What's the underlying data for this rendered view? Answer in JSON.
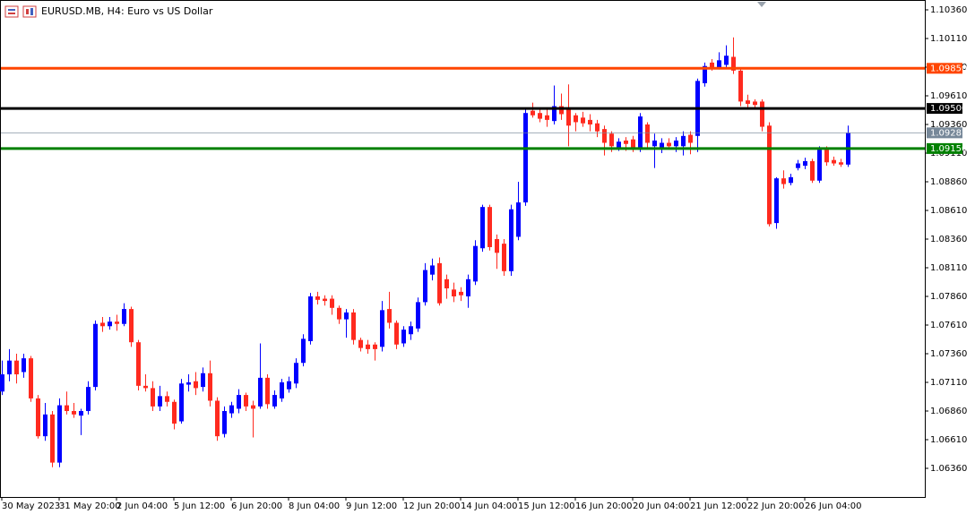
{
  "chart_data": {
    "type": "candlestick",
    "title": "EURUSD.MB, H4:  Euro vs US Dollar",
    "categories": [
      "30 May 2023",
      null,
      null,
      null,
      null,
      null,
      null,
      null,
      "31 May 20:00",
      null,
      null,
      null,
      null,
      null,
      null,
      null,
      "2 Jun 04:00",
      null,
      null,
      null,
      null,
      null,
      null,
      null,
      "5 Jun 12:00",
      null,
      null,
      null,
      null,
      null,
      null,
      null,
      "6 Jun 20:00",
      null,
      null,
      null,
      null,
      null,
      null,
      null,
      "8 Jun 04:00",
      null,
      null,
      null,
      null,
      null,
      null,
      null,
      "9 Jun 12:00",
      null,
      null,
      null,
      null,
      null,
      null,
      null,
      "12 Jun 20:00",
      null,
      null,
      null,
      null,
      null,
      null,
      null,
      "14 Jun 04:00",
      null,
      null,
      null,
      null,
      null,
      null,
      null,
      "15 Jun 12:00",
      null,
      null,
      null,
      null,
      null,
      null,
      null,
      "16 Jun 20:00",
      null,
      null,
      null,
      null,
      null,
      null,
      null,
      "20 Jun 04:00",
      null,
      null,
      null,
      null,
      null,
      null,
      null,
      "21 Jun 12:00",
      null,
      null,
      null,
      null,
      null,
      null,
      null,
      "22 Jun 20:00",
      null,
      null,
      null,
      null,
      null,
      null,
      null,
      "26 Jun 04:00",
      null,
      null,
      null,
      null,
      null,
      null
    ],
    "open": [
      1.0703,
      1.0718,
      1.073,
      1.072,
      1.0732,
      1.0697,
      1.0664,
      1.0683,
      1.0641,
      1.0691,
      1.0686,
      1.0682,
      1.0686,
      1.0707,
      1.0763,
      1.076,
      1.0764,
      1.0762,
      1.0775,
      1.0746,
      1.0708,
      1.0706,
      1.069,
      1.0699,
      1.0694,
      1.0677,
      1.0709,
      1.0712,
      1.0707,
      1.0719,
      1.0695,
      1.0666,
      1.0684,
      1.0688,
      1.07,
      1.0691,
      1.069,
      1.0715,
      1.069,
      1.0697,
      1.0705,
      1.071,
      1.0728,
      1.0747,
      1.0786,
      1.0784,
      1.0784,
      1.0776,
      1.0766,
      1.0772,
      1.0748,
      1.0744,
      1.0744,
      1.0742,
      1.0775,
      1.0763,
      1.0745,
      1.0753,
      1.0758,
      1.0781,
      1.0805,
      1.0815,
      1.0801,
      1.0792,
      1.079,
      1.0786,
      1.0799,
      1.0828,
      1.0864,
      1.0836,
      1.0832,
      1.0808,
      1.0838,
      1.0868,
      1.0948,
      1.0946,
      1.0944,
      1.0939,
      1.0952,
      1.095,
      1.0944,
      1.0942,
      1.094,
      1.0937,
      1.0932,
      1.0928,
      1.0916,
      1.0922,
      1.0923,
      1.0914,
      1.0936,
      1.0917,
      1.0916,
      1.092,
      1.0917,
      1.0917,
      1.0927,
      1.0926,
      1.0972,
      1.099,
      1.0986,
      1.0988,
      1.0995,
      1.0983,
      1.0957,
      1.0956,
      1.0956,
      1.0935,
      1.085,
      1.0889,
      1.0885,
      1.0898,
      1.09,
      1.0904,
      1.0887,
      1.0914,
      1.0905,
      1.0903,
      1.0901
    ],
    "high": [
      1.073,
      1.074,
      1.0736,
      1.0736,
      1.0734,
      1.07,
      1.0693,
      1.0686,
      1.0697,
      1.0703,
      1.0693,
      1.0688,
      1.0712,
      1.0765,
      1.0768,
      1.0768,
      1.077,
      1.078,
      1.0777,
      1.0748,
      1.0718,
      1.0712,
      1.0708,
      1.0703,
      1.0696,
      1.0714,
      1.0718,
      1.072,
      1.0724,
      1.073,
      1.0698,
      1.069,
      1.0694,
      1.0705,
      1.0702,
      1.0695,
      1.0745,
      1.0718,
      1.0704,
      1.0714,
      1.0716,
      1.0732,
      1.0753,
      1.0789,
      1.079,
      1.0787,
      1.0787,
      1.0778,
      1.0775,
      1.0775,
      1.075,
      1.0748,
      1.0746,
      1.0782,
      1.079,
      1.0765,
      1.076,
      1.0764,
      1.0785,
      1.0815,
      1.0819,
      1.082,
      1.0805,
      1.0798,
      1.0794,
      1.0805,
      1.0835,
      1.0866,
      1.0866,
      1.084,
      1.0836,
      1.0866,
      1.0886,
      1.095,
      1.0955,
      1.095,
      1.095,
      1.097,
      1.0963,
      1.0971,
      1.0946,
      1.0947,
      1.0945,
      1.094,
      1.0935,
      1.093,
      1.0924,
      1.0925,
      1.0926,
      1.0946,
      1.0938,
      1.0928,
      1.0924,
      1.0924,
      1.0925,
      1.093,
      1.093,
      1.0976,
      1.099,
      1.0993,
      1.0999,
      1.1005,
      1.1012,
      1.0986,
      1.0962,
      1.0958,
      1.0958,
      1.0938,
      1.089,
      1.0896,
      1.0893,
      1.0905,
      1.0907,
      1.0906,
      1.0917,
      1.0917,
      1.0908,
      1.0906,
      1.0935
    ],
    "low": [
      1.07,
      1.0712,
      1.071,
      1.0715,
      1.0694,
      1.0662,
      1.066,
      1.0637,
      1.0637,
      1.0683,
      1.068,
      1.0665,
      1.0683,
      1.0704,
      1.0755,
      1.0757,
      1.0756,
      1.076,
      1.0742,
      1.0704,
      1.0703,
      1.0686,
      1.0686,
      1.069,
      1.067,
      1.0675,
      1.0703,
      1.07,
      1.0703,
      1.069,
      1.066,
      1.0663,
      1.068,
      1.0684,
      1.0686,
      1.0663,
      1.0688,
      1.0688,
      1.0688,
      1.0694,
      1.0702,
      1.0706,
      1.0725,
      1.0744,
      1.0779,
      1.0778,
      1.077,
      1.0762,
      1.075,
      1.0744,
      1.0738,
      1.0736,
      1.073,
      1.0738,
      1.0758,
      1.074,
      1.0742,
      1.0748,
      1.0755,
      1.0778,
      1.08,
      1.0778,
      1.0784,
      1.0781,
      1.0782,
      1.0776,
      1.0796,
      1.0825,
      1.0826,
      1.081,
      1.0804,
      1.0804,
      1.0835,
      1.0865,
      1.0942,
      1.0938,
      1.0934,
      1.0936,
      1.094,
      1.0917,
      1.093,
      1.0934,
      1.093,
      1.0925,
      1.0909,
      1.0912,
      1.0913,
      1.0913,
      1.0912,
      1.0912,
      1.0915,
      1.0898,
      1.0911,
      1.0914,
      1.0912,
      1.0909,
      1.091,
      1.0912,
      1.0969,
      1.0983,
      1.0984,
      1.0985,
      1.098,
      1.0952,
      1.095,
      1.095,
      1.093,
      1.0847,
      1.0845,
      1.088,
      1.0883,
      1.0896,
      1.0897,
      1.0885,
      1.0885,
      1.09,
      1.09,
      1.0899,
      1.0899
    ],
    "close": [
      1.0718,
      1.073,
      1.0718,
      1.0732,
      1.0697,
      1.0664,
      1.0683,
      1.0641,
      1.0691,
      1.0686,
      1.0683,
      1.0686,
      1.0707,
      1.0762,
      1.076,
      1.0764,
      1.0762,
      1.0775,
      1.0746,
      1.0708,
      1.0706,
      1.069,
      1.0699,
      1.0694,
      1.0675,
      1.071,
      1.0711,
      1.0706,
      1.0719,
      1.0695,
      1.0664,
      1.0686,
      1.0691,
      1.07,
      1.069,
      1.0688,
      1.0715,
      1.0692,
      1.07,
      1.0711,
      1.0712,
      1.0728,
      1.0749,
      1.0786,
      1.0783,
      1.0782,
      1.0776,
      1.0766,
      1.0772,
      1.0748,
      1.0741,
      1.074,
      1.074,
      1.0774,
      1.0763,
      1.0744,
      1.0757,
      1.076,
      1.0781,
      1.0809,
      1.0813,
      1.078,
      1.0793,
      1.0786,
      1.0787,
      1.0801,
      1.083,
      1.0864,
      1.0829,
      1.0824,
      1.0808,
      1.0862,
      1.0868,
      1.0946,
      1.0944,
      1.0941,
      1.094,
      1.0952,
      1.0945,
      1.0935,
      1.0938,
      1.0937,
      1.0936,
      1.093,
      1.092,
      1.0917,
      1.0921,
      1.0919,
      1.0914,
      1.0943,
      1.092,
      1.0922,
      1.092,
      1.0917,
      1.0922,
      1.0926,
      1.092,
      1.0974,
      1.0987,
      1.0986,
      1.0992,
      1.0996,
      1.0983,
      1.0956,
      1.0954,
      1.0953,
      1.0934,
      1.0849,
      1.0889,
      1.0884,
      1.089,
      1.0902,
      1.0904,
      1.0887,
      1.0914,
      1.0903,
      1.0902,
      1.0901,
      1.09287
    ],
    "up_color": "#0000ff",
    "down_color": "#ff2a1f",
    "ylim": [
      1.0611,
      1.10446
    ],
    "yticks": [
      {
        "value": 1.1036,
        "label": "1.10360"
      },
      {
        "value": 1.1011,
        "label": "1.10110"
      },
      {
        "value": 1.0986,
        "label": "1.09860"
      },
      {
        "value": 1.0961,
        "label": "1.09610"
      },
      {
        "value": 1.0936,
        "label": "1.09360"
      },
      {
        "value": 1.0911,
        "label": "1.09110"
      },
      {
        "value": 1.0886,
        "label": "1.08860"
      },
      {
        "value": 1.0861,
        "label": "1.08610"
      },
      {
        "value": 1.0836,
        "label": "1.08360"
      },
      {
        "value": 1.0811,
        "label": "1.08110"
      },
      {
        "value": 1.0786,
        "label": "1.07860"
      },
      {
        "value": 1.0761,
        "label": "1.07610"
      },
      {
        "value": 1.0736,
        "label": "1.07360"
      },
      {
        "value": 1.0711,
        "label": "1.07110"
      },
      {
        "value": 1.0686,
        "label": "1.06860"
      },
      {
        "value": 1.0661,
        "label": "1.06610"
      },
      {
        "value": 1.0636,
        "label": "1.06360"
      }
    ],
    "levels": [
      {
        "value": 1.0985,
        "label": "1.09850",
        "color": "#ff4500"
      },
      {
        "value": 1.095,
        "label": "1.09500",
        "color": "#000000"
      },
      {
        "value": 1.0915,
        "label": "1.09150",
        "color": "#008000"
      },
      {
        "value": 1.09287,
        "label": "1.09287",
        "color": "#778899"
      }
    ]
  }
}
